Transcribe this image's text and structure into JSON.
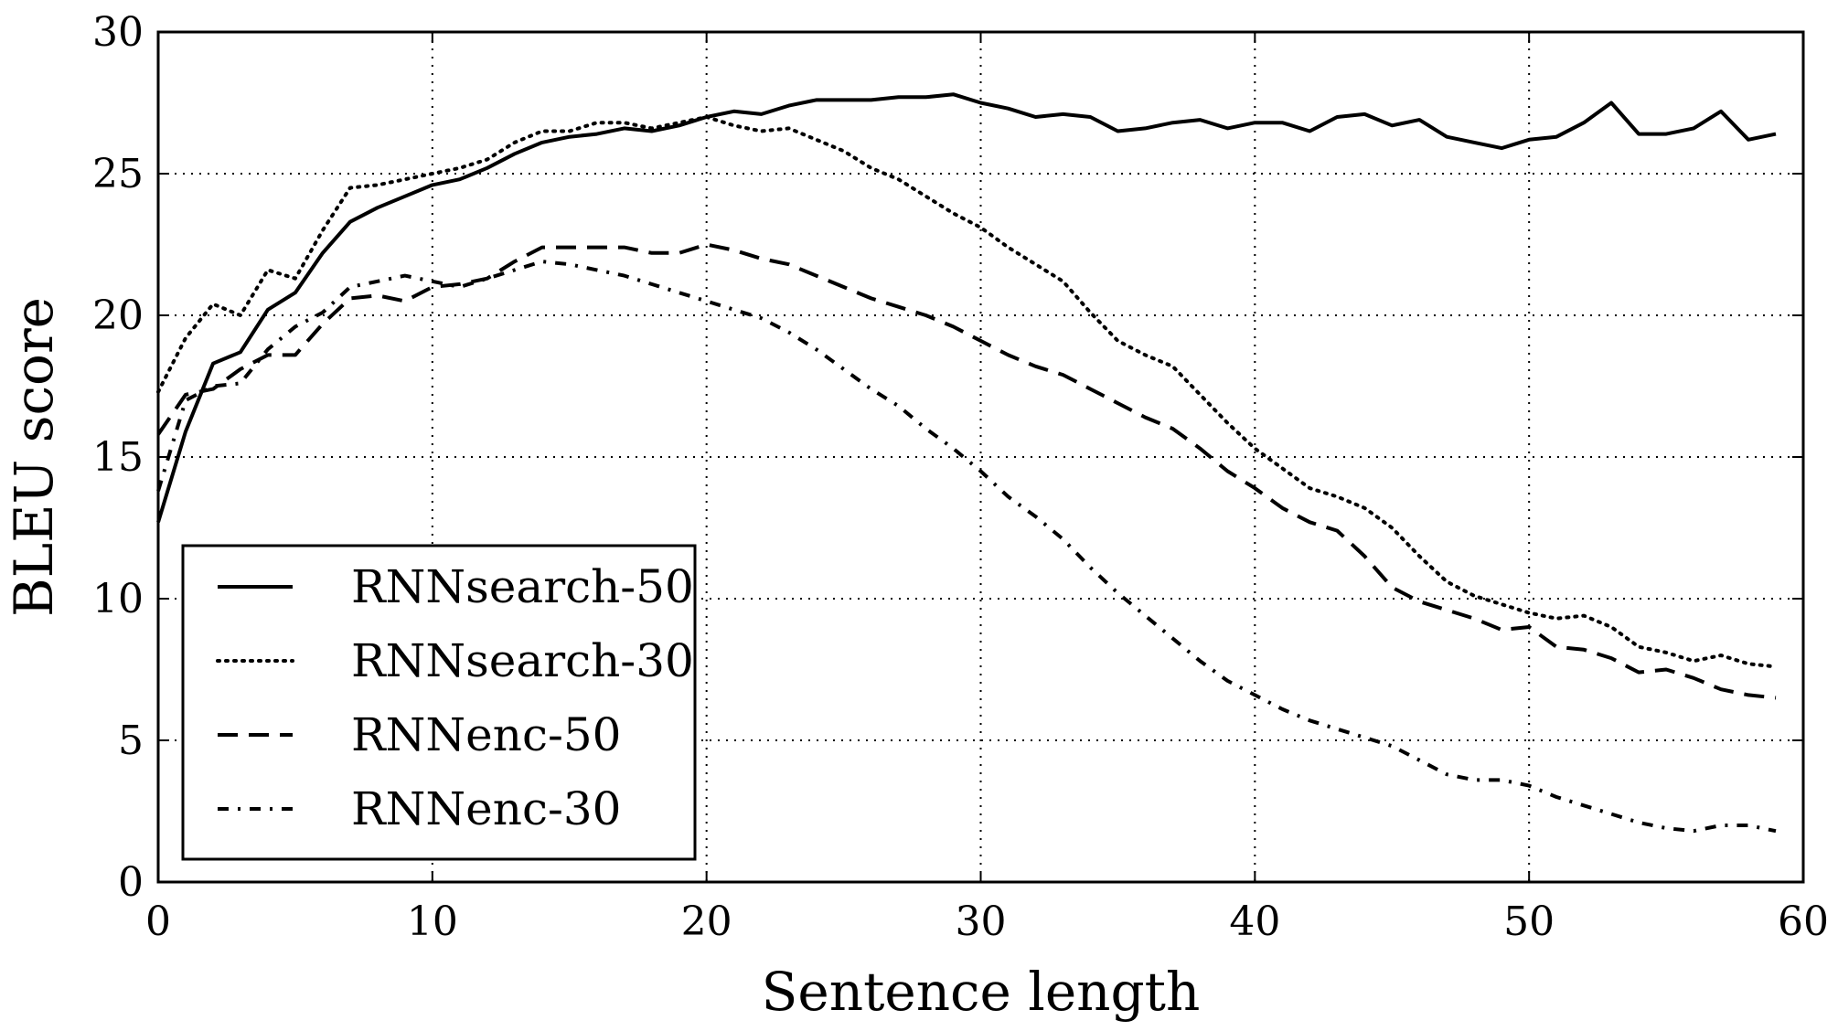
{
  "chart_data": {
    "type": "line",
    "title": "",
    "xlabel": "Sentence length",
    "ylabel": "BLEU score",
    "xlim": [
      0,
      60
    ],
    "ylim": [
      0,
      30
    ],
    "xticks": [
      0,
      10,
      20,
      30,
      40,
      50,
      60
    ],
    "yticks": [
      0,
      5,
      10,
      15,
      20,
      25,
      30
    ],
    "xtick_labels": [
      "0",
      "10",
      "20",
      "30",
      "40",
      "50",
      "60"
    ],
    "ytick_labels": [
      "0",
      "5",
      "10",
      "15",
      "20",
      "25",
      "30"
    ],
    "grid": true,
    "legend_position": "lower-left",
    "series": [
      {
        "name": "RNNsearch-50",
        "style": "solid",
        "color": "#000000",
        "x": [
          0,
          1,
          2,
          3,
          4,
          5,
          6,
          7,
          8,
          9,
          10,
          11,
          12,
          13,
          14,
          15,
          16,
          17,
          18,
          19,
          20,
          21,
          22,
          23,
          24,
          25,
          26,
          27,
          28,
          29,
          30,
          31,
          32,
          33,
          34,
          35,
          36,
          37,
          38,
          39,
          40,
          41,
          42,
          43,
          44,
          45,
          46,
          47,
          48,
          49,
          50,
          51,
          52,
          53,
          54,
          55,
          56,
          57,
          58,
          59
        ],
        "y": [
          12.7,
          15.9,
          18.3,
          18.7,
          20.2,
          20.8,
          22.2,
          23.3,
          23.8,
          24.2,
          24.6,
          24.8,
          25.2,
          25.7,
          26.1,
          26.3,
          26.4,
          26.6,
          26.5,
          26.7,
          27.0,
          27.2,
          27.1,
          27.4,
          27.6,
          27.6,
          27.6,
          27.7,
          27.7,
          27.8,
          27.5,
          27.3,
          27.0,
          27.1,
          27.0,
          26.5,
          26.6,
          26.8,
          26.9,
          26.6,
          26.8,
          26.8,
          26.5,
          27.0,
          27.1,
          26.7,
          26.9,
          26.3,
          26.1,
          25.9,
          26.2,
          26.3,
          26.8,
          27.5,
          26.4,
          26.4,
          26.6,
          27.2,
          26.2,
          26.4
        ]
      },
      {
        "name": "RNNsearch-30",
        "style": "dotted",
        "color": "#000000",
        "x": [
          0,
          1,
          2,
          3,
          4,
          5,
          6,
          7,
          8,
          9,
          10,
          11,
          12,
          13,
          14,
          15,
          16,
          17,
          18,
          19,
          20,
          21,
          22,
          23,
          24,
          25,
          26,
          27,
          28,
          29,
          30,
          31,
          32,
          33,
          34,
          35,
          36,
          37,
          38,
          39,
          40,
          41,
          42,
          43,
          44,
          45,
          46,
          47,
          48,
          49,
          50,
          51,
          52,
          53,
          54,
          55,
          56,
          57,
          58,
          59
        ],
        "y": [
          17.3,
          19.2,
          20.4,
          20.0,
          21.6,
          21.3,
          23.0,
          24.5,
          24.6,
          24.8,
          25.0,
          25.2,
          25.5,
          26.1,
          26.5,
          26.5,
          26.8,
          26.8,
          26.6,
          26.8,
          27.0,
          26.7,
          26.5,
          26.6,
          26.2,
          25.8,
          25.2,
          24.8,
          24.2,
          23.6,
          23.1,
          22.4,
          21.8,
          21.2,
          20.1,
          19.1,
          18.6,
          18.2,
          17.2,
          16.2,
          15.3,
          14.6,
          13.9,
          13.6,
          13.2,
          12.5,
          11.5,
          10.6,
          10.1,
          9.8,
          9.5,
          9.3,
          9.4,
          9.0,
          8.3,
          8.1,
          7.8,
          8.0,
          7.7,
          7.6
        ]
      },
      {
        "name": "RNNenc-50",
        "style": "dashed",
        "color": "#000000",
        "x": [
          0,
          1,
          2,
          3,
          4,
          5,
          6,
          7,
          8,
          9,
          10,
          11,
          12,
          13,
          14,
          15,
          16,
          17,
          18,
          19,
          20,
          21,
          22,
          23,
          24,
          25,
          26,
          27,
          28,
          29,
          30,
          31,
          32,
          33,
          34,
          35,
          36,
          37,
          38,
          39,
          40,
          41,
          42,
          43,
          44,
          45,
          46,
          47,
          48,
          49,
          50,
          51,
          52,
          53,
          54,
          55,
          56,
          57,
          58,
          59
        ],
        "y": [
          15.8,
          17.2,
          17.4,
          18.1,
          18.6,
          18.6,
          19.7,
          20.6,
          20.7,
          20.5,
          21.0,
          21.1,
          21.3,
          21.9,
          22.4,
          22.4,
          22.4,
          22.4,
          22.2,
          22.2,
          22.5,
          22.3,
          22.0,
          21.8,
          21.4,
          21.0,
          20.6,
          20.3,
          20.0,
          19.6,
          19.1,
          18.6,
          18.2,
          17.9,
          17.4,
          16.9,
          16.4,
          16.0,
          15.3,
          14.5,
          13.9,
          13.2,
          12.7,
          12.4,
          11.5,
          10.4,
          9.9,
          9.6,
          9.3,
          8.9,
          9.0,
          8.3,
          8.2,
          7.9,
          7.4,
          7.5,
          7.2,
          6.8,
          6.6,
          6.5
        ]
      },
      {
        "name": "RNNenc-30",
        "style": "dashdot",
        "color": "#000000",
        "x": [
          0,
          1,
          2,
          3,
          4,
          5,
          6,
          7,
          8,
          9,
          10,
          11,
          12,
          13,
          14,
          15,
          16,
          17,
          18,
          19,
          20,
          21,
          22,
          23,
          24,
          25,
          26,
          27,
          28,
          29,
          30,
          31,
          32,
          33,
          34,
          35,
          36,
          37,
          38,
          39,
          40,
          41,
          42,
          43,
          44,
          45,
          46,
          47,
          48,
          49,
          50,
          51,
          52,
          53,
          54,
          55,
          56,
          57,
          58,
          59
        ],
        "y": [
          13.8,
          17.0,
          17.5,
          17.6,
          18.8,
          19.6,
          20.1,
          21.0,
          21.2,
          21.4,
          21.2,
          21.0,
          21.3,
          21.6,
          21.9,
          21.8,
          21.6,
          21.4,
          21.1,
          20.8,
          20.5,
          20.2,
          19.9,
          19.4,
          18.8,
          18.1,
          17.4,
          16.8,
          16.0,
          15.3,
          14.5,
          13.6,
          12.9,
          12.1,
          11.1,
          10.2,
          9.4,
          8.6,
          7.8,
          7.1,
          6.6,
          6.1,
          5.7,
          5.4,
          5.1,
          4.8,
          4.3,
          3.8,
          3.6,
          3.6,
          3.4,
          3.0,
          2.7,
          2.4,
          2.1,
          1.9,
          1.8,
          2.0,
          2.0,
          1.8
        ]
      }
    ]
  }
}
